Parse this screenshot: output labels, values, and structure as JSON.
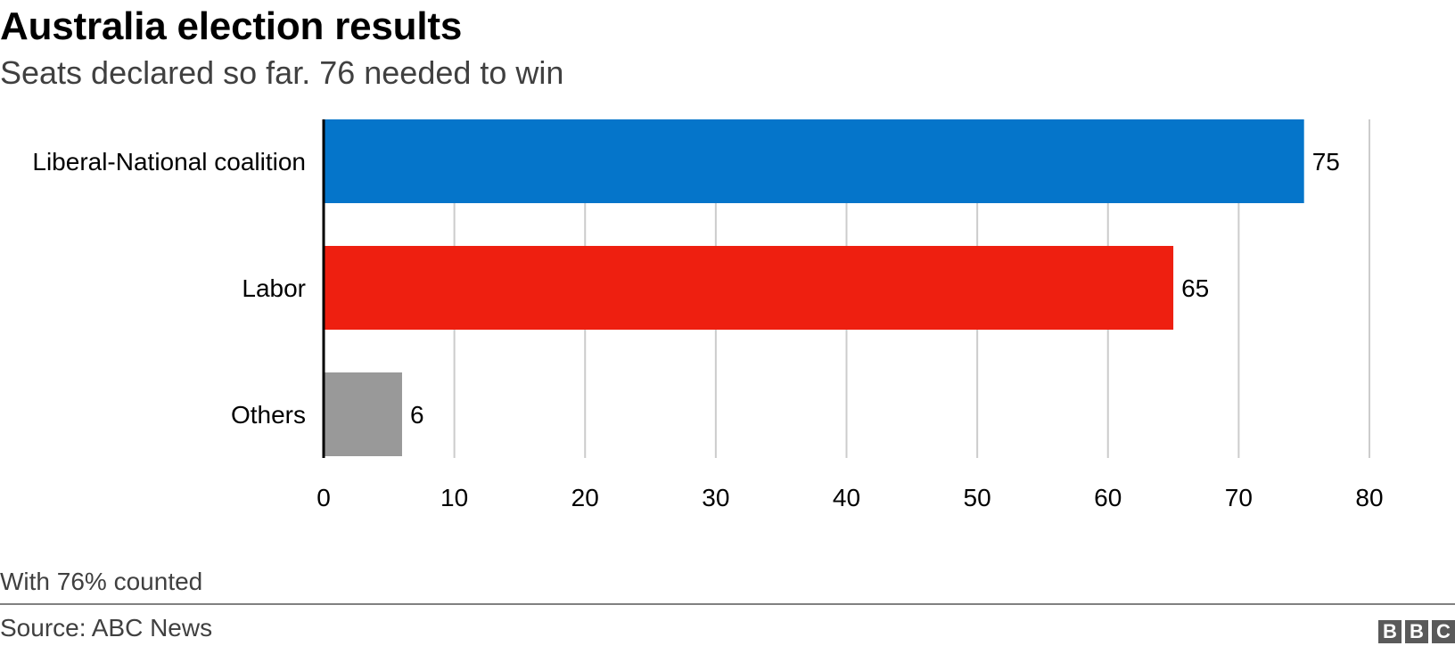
{
  "chart_data": {
    "type": "bar",
    "orientation": "horizontal",
    "title": "Australia election results",
    "subtitle": "Seats declared so far. 76 needed to win",
    "categories": [
      "Liberal-National coalition",
      "Labor",
      "Others"
    ],
    "values": [
      75,
      65,
      6
    ],
    "colors": [
      "#0575ca",
      "#ee1f10",
      "#999999"
    ],
    "xlim": [
      0,
      80
    ],
    "xticks": [
      0,
      10,
      20,
      30,
      40,
      50,
      60,
      70,
      80
    ],
    "grid": "vertical",
    "data_labels": true
  },
  "footnote": "With 76% counted",
  "source": "Source: ABC News",
  "logo": {
    "letters": [
      "B",
      "B",
      "C"
    ],
    "color": "#5a5a5a"
  }
}
